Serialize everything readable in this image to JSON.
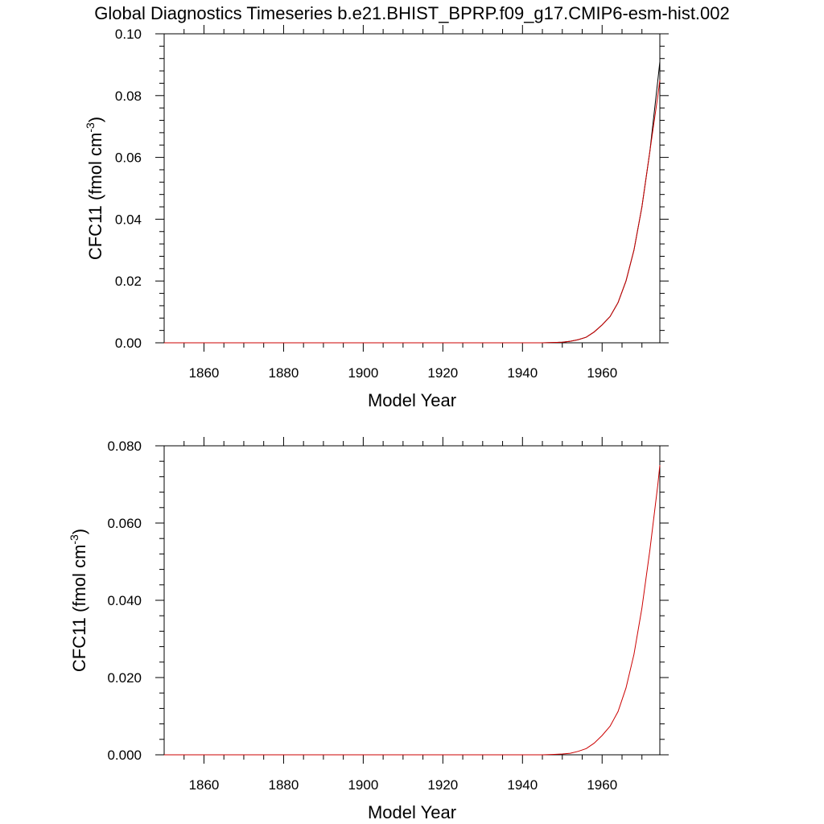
{
  "title": "Global Diagnostics Timeseries b.e21.BHIST_BPRP.f09_g17.CMIP6-esm-hist.002",
  "chart_data": [
    {
      "type": "line",
      "xlabel": "Model Year",
      "ylabel": "CFC11 (fmol cm",
      "ylabel_superscript": "-3",
      "ylabel_suffix": ")",
      "xlim": [
        1850,
        1974.5
      ],
      "ylim": [
        0,
        0.1
      ],
      "x_ticks": [
        1860,
        1880,
        1900,
        1920,
        1940,
        1960
      ],
      "x_tick_labels": [
        "1860",
        "1880",
        "1900",
        "1920",
        "1940",
        "1960"
      ],
      "y_ticks": [
        0,
        0.02,
        0.04,
        0.06,
        0.08,
        0.1
      ],
      "y_tick_labels": [
        "0.00",
        "0.02",
        "0.04",
        "0.06",
        "0.08",
        "0.10"
      ],
      "grid": false,
      "series": [
        {
          "color": "#000000",
          "x": [
            1850,
            1900,
            1940,
            1945,
            1948,
            1950,
            1952,
            1954,
            1956,
            1958,
            1960,
            1962,
            1964,
            1966,
            1968,
            1970,
            1972,
            1974,
            1974.5
          ],
          "y": [
            0,
            0,
            0,
            0,
            0.0001,
            0.0002,
            0.0005,
            0.001,
            0.0018,
            0.0035,
            0.0058,
            0.0085,
            0.013,
            0.02,
            0.03,
            0.044,
            0.062,
            0.085,
            0.091
          ]
        },
        {
          "color": "#cc0000",
          "x": [
            1850,
            1900,
            1940,
            1945,
            1948,
            1950,
            1952,
            1954,
            1956,
            1958,
            1960,
            1962,
            1964,
            1966,
            1968,
            1970,
            1972,
            1974,
            1974.5
          ],
          "y": [
            0,
            0,
            0,
            0,
            0.0001,
            0.0002,
            0.0005,
            0.001,
            0.0018,
            0.0035,
            0.0058,
            0.0085,
            0.013,
            0.02,
            0.03,
            0.044,
            0.062,
            0.08,
            0.085
          ]
        }
      ]
    },
    {
      "type": "line",
      "xlabel": "Model Year",
      "ylabel": "CFC11 (fmol cm",
      "ylabel_superscript": "-3",
      "ylabel_suffix": ")",
      "xlim": [
        1850,
        1974.5
      ],
      "ylim": [
        0,
        0.08
      ],
      "x_ticks": [
        1860,
        1880,
        1900,
        1920,
        1940,
        1960
      ],
      "x_tick_labels": [
        "1860",
        "1880",
        "1900",
        "1920",
        "1940",
        "1960"
      ],
      "y_ticks": [
        0,
        0.02,
        0.04,
        0.06,
        0.08
      ],
      "y_tick_labels": [
        "0.000",
        "0.020",
        "0.040",
        "0.060",
        "0.080"
      ],
      "grid": false,
      "series": [
        {
          "color": "#cc0000",
          "x": [
            1850,
            1900,
            1940,
            1945,
            1948,
            1950,
            1952,
            1954,
            1956,
            1958,
            1960,
            1962,
            1964,
            1966,
            1968,
            1970,
            1972,
            1974,
            1974.5
          ],
          "y": [
            0,
            0,
            0,
            0,
            0.0001,
            0.0002,
            0.0004,
            0.0009,
            0.0016,
            0.003,
            0.005,
            0.0074,
            0.0112,
            0.0173,
            0.026,
            0.038,
            0.053,
            0.07,
            0.075
          ]
        }
      ]
    }
  ]
}
